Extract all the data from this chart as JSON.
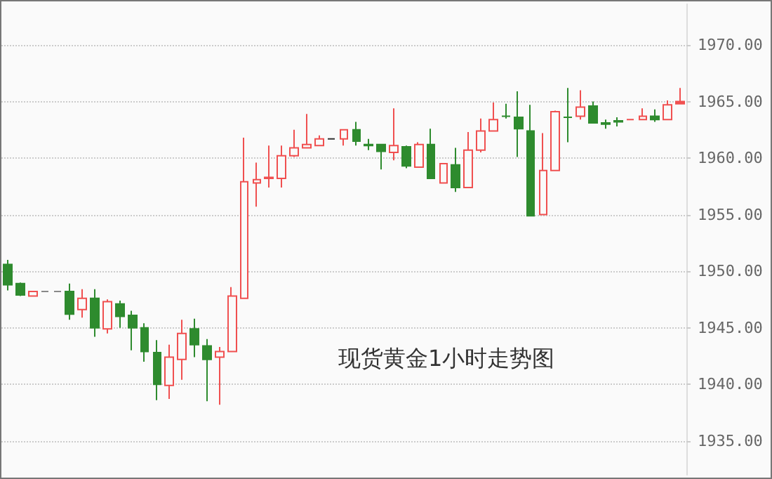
{
  "chart_data": {
    "type": "candlestick",
    "annotations": [
      "现货黄金1小时走势图"
    ],
    "categories": [
      null,
      null,
      null,
      null,
      null,
      null,
      null,
      null,
      null,
      null,
      null,
      null,
      null,
      null,
      null,
      null,
      null,
      null,
      null,
      null,
      null,
      null,
      null,
      null,
      null,
      null,
      null,
      null,
      null,
      null,
      null,
      null,
      null,
      null,
      null,
      null,
      null,
      null,
      null,
      null,
      null,
      null,
      null,
      null,
      null,
      null,
      null,
      null,
      null,
      null,
      null,
      null,
      null,
      null,
      null
    ],
    "ohlc": [
      [
        1950.6,
        1951.0,
        1948.3,
        1948.8
      ],
      [
        1948.9,
        1949.0,
        1947.8,
        1947.9
      ],
      [
        1947.8,
        1948.2,
        1947.8,
        1948.2
      ],
      [
        1948.2,
        1948.2,
        1948.2,
        1948.2
      ],
      [
        1948.2,
        1948.2,
        1948.2,
        1948.2
      ],
      [
        1948.2,
        1948.9,
        1945.7,
        1946.2
      ],
      [
        1946.6,
        1948.4,
        1945.9,
        1947.6
      ],
      [
        1947.6,
        1948.4,
        1944.2,
        1945.0
      ],
      [
        1944.9,
        1947.5,
        1944.5,
        1947.3
      ],
      [
        1947.1,
        1947.4,
        1945.0,
        1946.0
      ],
      [
        1946.1,
        1946.5,
        1943.0,
        1945.0
      ],
      [
        1945.0,
        1945.4,
        1942.0,
        1942.9
      ],
      [
        1942.8,
        1943.9,
        1938.6,
        1940.0
      ],
      [
        1939.9,
        1943.5,
        1938.7,
        1942.4
      ],
      [
        1942.2,
        1945.7,
        1940.4,
        1944.5
      ],
      [
        1944.9,
        1945.8,
        1942.4,
        1943.5
      ],
      [
        1943.4,
        1944.0,
        1938.5,
        1942.2
      ],
      [
        1942.4,
        1943.3,
        1938.2,
        1942.9
      ],
      [
        1942.9,
        1948.6,
        1942.9,
        1947.8
      ],
      [
        1947.6,
        1961.8,
        1947.6,
        1957.9
      ],
      [
        1957.8,
        1959.6,
        1955.7,
        1958.1
      ],
      [
        1958.2,
        1961.1,
        1957.4,
        1958.3
      ],
      [
        1958.2,
        1961.1,
        1957.4,
        1960.2
      ],
      [
        1960.2,
        1962.5,
        1960.1,
        1960.9
      ],
      [
        1960.9,
        1963.9,
        1960.9,
        1961.2
      ],
      [
        1961.1,
        1962.0,
        1961.1,
        1961.7
      ],
      [
        1961.7,
        1961.7,
        1961.7,
        1961.7
      ],
      [
        1961.7,
        1962.5,
        1961.1,
        1962.5
      ],
      [
        1962.5,
        1963.2,
        1961.1,
        1961.5
      ],
      [
        1961.2,
        1961.7,
        1960.7,
        1961.1
      ],
      [
        1961.2,
        1961.2,
        1959.0,
        1960.6
      ],
      [
        1960.5,
        1964.4,
        1959.8,
        1961.1
      ],
      [
        1961.0,
        1961.1,
        1959.1,
        1959.3
      ],
      [
        1959.2,
        1961.4,
        1959.2,
        1961.2
      ],
      [
        1961.2,
        1962.6,
        1958.2,
        1958.2
      ],
      [
        1957.8,
        1959.5,
        1957.8,
        1959.5
      ],
      [
        1959.4,
        1960.9,
        1957.0,
        1957.4
      ],
      [
        1957.4,
        1962.3,
        1957.4,
        1960.7
      ],
      [
        1960.7,
        1963.5,
        1960.5,
        1962.4
      ],
      [
        1962.4,
        1964.9,
        1962.4,
        1963.4
      ],
      [
        1963.7,
        1964.8,
        1963.5,
        1963.7
      ],
      [
        1963.6,
        1965.9,
        1960.1,
        1962.6
      ],
      [
        1962.4,
        1964.7,
        1954.9,
        1954.9
      ],
      [
        1955.0,
        1962.2,
        1955.0,
        1958.9
      ],
      [
        1958.9,
        1964.2,
        1958.9,
        1964.1
      ],
      [
        1963.6,
        1966.2,
        1961.4,
        1963.6
      ],
      [
        1963.7,
        1966.0,
        1963.4,
        1964.5
      ],
      [
        1964.6,
        1965.0,
        1963.1,
        1963.1
      ],
      [
        1963.1,
        1963.4,
        1962.6,
        1963.0
      ],
      [
        1963.3,
        1963.6,
        1962.8,
        1963.2
      ],
      [
        1963.4,
        1963.4,
        1963.4,
        1963.4
      ],
      [
        1963.4,
        1964.4,
        1963.4,
        1963.7
      ],
      [
        1963.7,
        1964.3,
        1963.2,
        1963.4
      ],
      [
        1963.4,
        1965.1,
        1963.4,
        1964.7
      ],
      [
        1964.8,
        1966.2,
        1964.8,
        1965.0
      ]
    ],
    "colors": [
      "#2e8b2e",
      "#2e8b2e",
      "#f05050",
      "#888888",
      "#888888",
      "#2e8b2e",
      "#f05050",
      "#2e8b2e",
      "#f05050",
      "#2e8b2e",
      "#2e8b2e",
      "#2e8b2e",
      "#2e8b2e",
      "#f05050",
      "#f05050",
      "#2e8b2e",
      "#2e8b2e",
      "#f05050",
      "#f05050",
      "#f05050",
      "#f05050",
      "#f05050",
      "#f05050",
      "#f05050",
      "#f05050",
      "#f05050",
      "#333333",
      "#f05050",
      "#2e8b2e",
      "#2e8b2e",
      "#2e8b2e",
      "#f05050",
      "#2e8b2e",
      "#f05050",
      "#2e8b2e",
      "#f05050",
      "#2e8b2e",
      "#f05050",
      "#f05050",
      "#f05050",
      "#2e8b2e",
      "#2e8b2e",
      "#2e8b2e",
      "#f05050",
      "#f05050",
      "#2e8b2e",
      "#f05050",
      "#2e8b2e",
      "#2e8b2e",
      "#2e8b2e",
      "#f05050",
      "#f05050",
      "#2e8b2e",
      "#f05050",
      "#f05050"
    ],
    "ylim": [
      1932,
      1973.6
    ],
    "yticks": [
      {
        "value": 1935,
        "label": "1935.00"
      },
      {
        "value": 1940,
        "label": "1940.00"
      },
      {
        "value": 1945,
        "label": "1945.00"
      },
      {
        "value": 1950,
        "label": "1950.00"
      },
      {
        "value": 1955,
        "label": "1955.00"
      },
      {
        "value": 1960,
        "label": "1960.00"
      },
      {
        "value": 1965,
        "label": "1965.00"
      },
      {
        "value": 1970,
        "label": "1970.00"
      }
    ],
    "grid": "y",
    "tick_labels": "y"
  }
}
